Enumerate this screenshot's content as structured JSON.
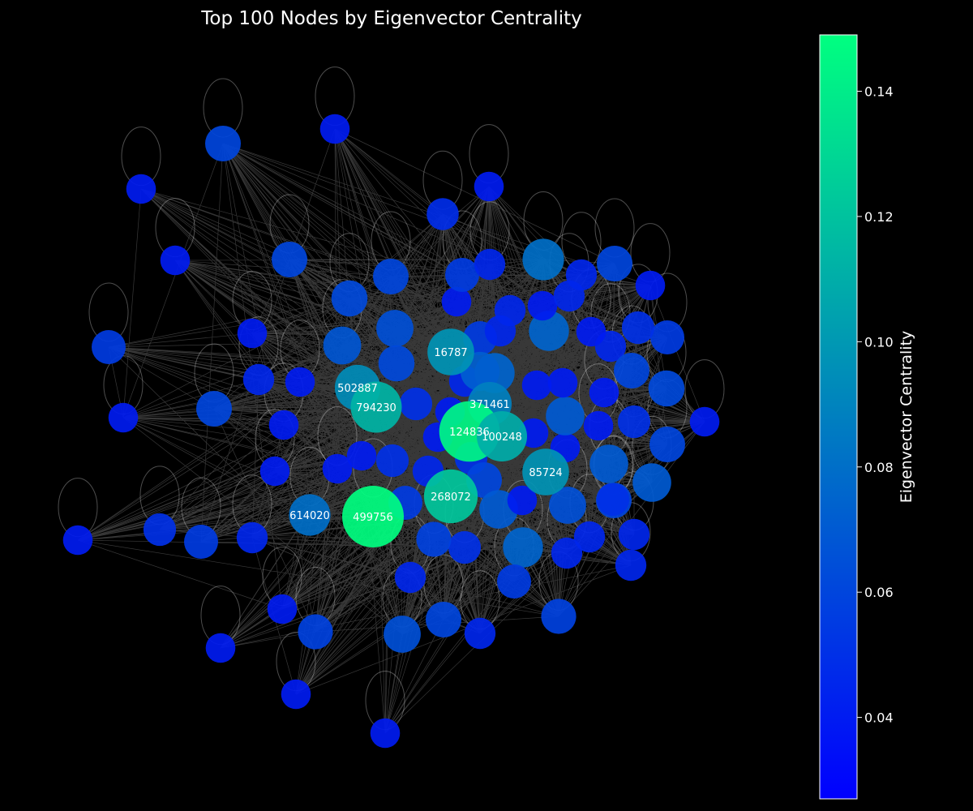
{
  "title": "Top 100 Nodes by Eigenvector Centrality",
  "colorbar": {
    "label": "Eigenvector Centrality",
    "min": 0.027,
    "max": 0.149,
    "ticks": [
      "0.04",
      "0.06",
      "0.08",
      "0.10",
      "0.12",
      "0.14"
    ],
    "tick_values": [
      0.04,
      0.06,
      0.08,
      0.1,
      0.12,
      0.14
    ],
    "colormap": "winter",
    "color_low": "#0000ff",
    "color_high": "#00ff80"
  },
  "background_color": "#000000",
  "edge_color": "#ffffff",
  "labeled_nodes": [
    {
      "id": "16787",
      "centrality": 0.098
    },
    {
      "id": "502887",
      "centrality": 0.094
    },
    {
      "id": "794230",
      "centrality": 0.113
    },
    {
      "id": "371461",
      "centrality": 0.088
    },
    {
      "id": "124836",
      "centrality": 0.145
    },
    {
      "id": "100248",
      "centrality": 0.11
    },
    {
      "id": "85724",
      "centrality": 0.098
    },
    {
      "id": "268072",
      "centrality": 0.122
    },
    {
      "id": "614020",
      "centrality": 0.08
    },
    {
      "id": "499756",
      "centrality": 0.149
    }
  ]
}
